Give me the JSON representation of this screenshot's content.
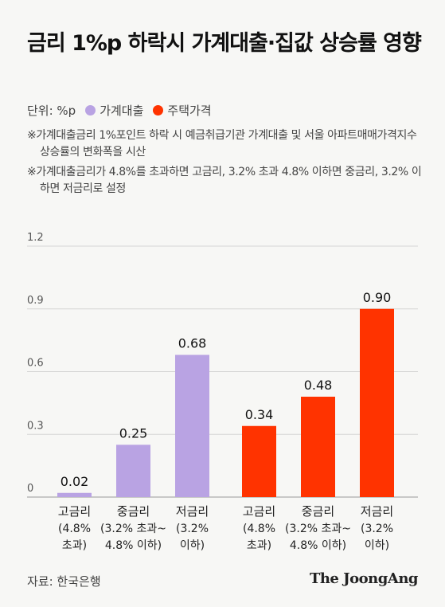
{
  "title": "금리 1%p 하락시 가계대출·집값 상승률 영향",
  "legend": {
    "unit": "단위: %p",
    "items": [
      {
        "label": "가계대출",
        "color": "#b9a3e3"
      },
      {
        "label": "주택가격",
        "color": "#ff3300"
      }
    ]
  },
  "notes": [
    "※가계대출금리 1%포인트 하락 시 예금취급기관 가계대출 및 서울 아파트매매가격지수 상승률의 변화폭을 시산",
    "※가계대출금리가 4.8%를 초과하면 고금리, 3.2% 초과 4.8% 이하면 중금리, 3.2% 이하면 저금리로 설정"
  ],
  "chart_data": {
    "type": "bar",
    "categories": [
      [
        "고금리",
        "(4.8%",
        "초과)"
      ],
      [
        "중금리",
        "(3.2% 초과~",
        "4.8% 이하)"
      ],
      [
        "저금리",
        "(3.2%",
        "이하)"
      ]
    ],
    "series": [
      {
        "name": "가계대출",
        "color": "#b9a3e3",
        "values": [
          0.02,
          0.25,
          0.68
        ],
        "labels": [
          "0.02",
          "0.25",
          "0.68"
        ]
      },
      {
        "name": "주택가격",
        "color": "#ff3300",
        "values": [
          0.34,
          0.48,
          0.9
        ],
        "labels": [
          "0.34",
          "0.48",
          "0.90"
        ]
      }
    ],
    "yticks": [
      "1.2",
      "0.9",
      "0.6",
      "0.3",
      "0"
    ],
    "ylim": [
      0,
      1.2
    ],
    "grid": true
  },
  "source": "자료: 한국은행",
  "logo": "The JoongAng"
}
